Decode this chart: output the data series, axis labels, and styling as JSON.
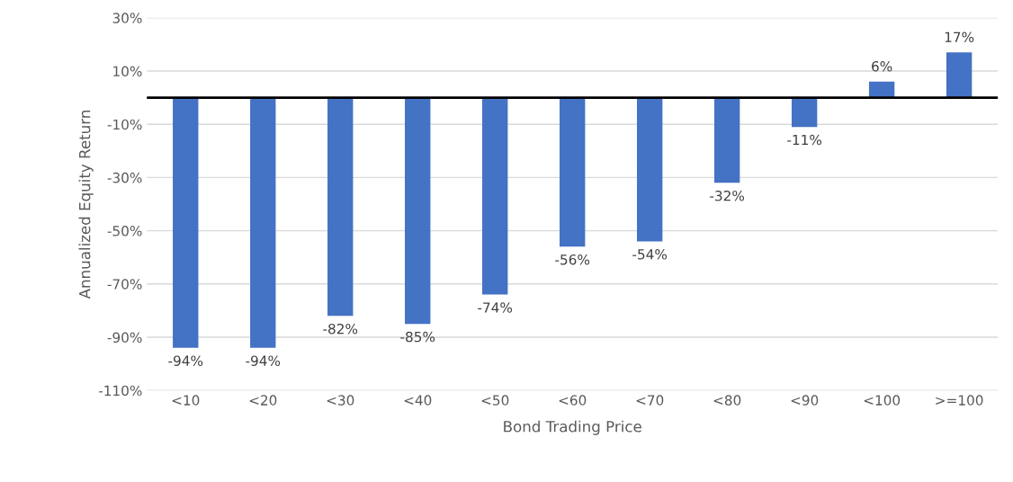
{
  "chart_data": {
    "type": "bar",
    "xlabel": "Bond Trading Price",
    "ylabel": "Annualized Equity Return",
    "categories": [
      "<10",
      "<20",
      "<30",
      "<40",
      "<50",
      "<60",
      "<70",
      "<80",
      "<90",
      "<100",
      ">=100"
    ],
    "values": [
      -94,
      -94,
      -82,
      -85,
      -74,
      -56,
      -54,
      -32,
      -11,
      6,
      17
    ],
    "value_labels": [
      "-94%",
      "-94%",
      "-82%",
      "-85%",
      "-74%",
      "-56%",
      "-54%",
      "-32%",
      "-11%",
      "6%",
      "17%"
    ],
    "color": "#4472c4",
    "ylim": [
      -110,
      30
    ],
    "yticks": [
      {
        "value": -110,
        "label": "-110%"
      },
      {
        "value": -90,
        "label": "-90%"
      },
      {
        "value": -70,
        "label": "-70%"
      },
      {
        "value": -50,
        "label": "-50%"
      },
      {
        "value": -30,
        "label": "-30%"
      },
      {
        "value": -10,
        "label": "-10%"
      },
      {
        "value": 10,
        "label": "10%"
      },
      {
        "value": 30,
        "label": "30%"
      }
    ],
    "grid": "y"
  }
}
